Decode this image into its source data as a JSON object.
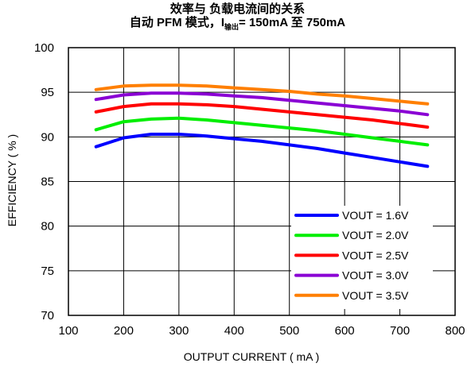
{
  "chart_data": {
    "type": "line",
    "title_line1": "效率与 负载电流间的关系",
    "title_line2_prefix": "自动 PFM 模式，I",
    "title_line2_sub": "输出",
    "title_line2_suffix": "= 150mA 至 750mA",
    "xlabel": "OUTPUT CURRENT ( mA )",
    "ylabel": "EFFICIENCY ( % )",
    "xlim": [
      100,
      800
    ],
    "ylim": [
      70,
      100
    ],
    "xticks": [
      100,
      200,
      300,
      400,
      500,
      600,
      700,
      800
    ],
    "yticks": [
      70,
      75,
      80,
      85,
      90,
      95,
      100
    ],
    "grid": true,
    "legend_position": "bottom-right",
    "x": [
      150,
      200,
      250,
      300,
      350,
      400,
      450,
      500,
      550,
      600,
      650,
      700,
      750
    ],
    "series": [
      {
        "name": "VOUT = 1.6V",
        "color": "#0000ff",
        "values": [
          88.9,
          89.9,
          90.3,
          90.3,
          90.1,
          89.8,
          89.5,
          89.1,
          88.7,
          88.2,
          87.7,
          87.2,
          86.7
        ]
      },
      {
        "name": "VOUT = 2.0V",
        "color": "#00ee00",
        "values": [
          90.8,
          91.7,
          92.0,
          92.1,
          91.9,
          91.6,
          91.3,
          91.0,
          90.7,
          90.3,
          89.9,
          89.5,
          89.1
        ]
      },
      {
        "name": "VOUT = 2.5V",
        "color": "#ff0000",
        "values": [
          92.8,
          93.4,
          93.7,
          93.7,
          93.6,
          93.4,
          93.1,
          92.8,
          92.5,
          92.2,
          91.9,
          91.5,
          91.1
        ]
      },
      {
        "name": "VOUT = 3.0V",
        "color": "#8a00d4",
        "values": [
          94.2,
          94.7,
          94.9,
          94.9,
          94.8,
          94.6,
          94.4,
          94.1,
          93.8,
          93.5,
          93.2,
          92.9,
          92.5
        ]
      },
      {
        "name": "VOUT = 3.5V",
        "color": "#ff7f00",
        "values": [
          95.3,
          95.7,
          95.8,
          95.8,
          95.7,
          95.5,
          95.3,
          95.1,
          94.8,
          94.6,
          94.3,
          94.0,
          93.7
        ]
      }
    ]
  }
}
